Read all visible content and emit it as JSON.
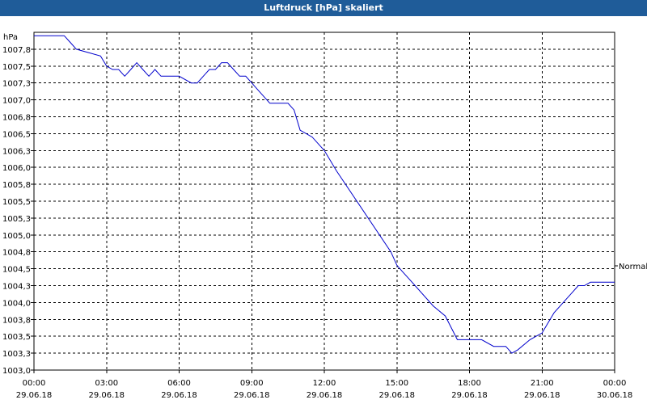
{
  "window": {
    "title": "Luftdruck [hPa] skaliert"
  },
  "chart_data": {
    "type": "line",
    "title": "Luftdruck [hPa] skaliert",
    "ylabel": "hPa",
    "xlabel": "",
    "ylim": [
      1003.0,
      1008.0
    ],
    "grid": true,
    "y_ticks": [
      "1003,0",
      "1003,3",
      "1003,5",
      "1003,8",
      "1004,0",
      "1004,3",
      "1004,5",
      "1004,8",
      "1005,0",
      "1005,3",
      "1005,5",
      "1005,8",
      "1006,0",
      "1006,3",
      "1006,5",
      "1006,8",
      "1007,0",
      "1007,3",
      "1007,5",
      "1007,8"
    ],
    "x_ticks": [
      {
        "time": "00:00",
        "date": "29.06.18"
      },
      {
        "time": "03:00",
        "date": "29.06.18"
      },
      {
        "time": "06:00",
        "date": "29.06.18"
      },
      {
        "time": "09:00",
        "date": "29.06.18"
      },
      {
        "time": "12:00",
        "date": "29.06.18"
      },
      {
        "time": "15:00",
        "date": "29.06.18"
      },
      {
        "time": "18:00",
        "date": "29.06.18"
      },
      {
        "time": "21:00",
        "date": "29.06.18"
      },
      {
        "time": "00:00",
        "date": "30.06.18"
      }
    ],
    "annotation": "Normal",
    "series": [
      {
        "color": "#0000cc",
        "x": [
          "00:00",
          "01:15",
          "01:30",
          "01:45",
          "02:45",
          "03:00",
          "03:15",
          "03:30",
          "03:45",
          "04:00",
          "04:15",
          "04:30",
          "04:45",
          "05:00",
          "05:15",
          "05:45",
          "06:00",
          "06:30",
          "06:45",
          "07:00",
          "07:15",
          "07:30",
          "07:45",
          "08:00",
          "08:15",
          "08:30",
          "08:45",
          "09:00",
          "09:15",
          "09:30",
          "09:45",
          "10:30",
          "10:45",
          "11:00",
          "11:30",
          "11:45",
          "12:00",
          "12:15",
          "12:30",
          "14:45",
          "15:00",
          "15:15",
          "15:30",
          "16:30",
          "17:00",
          "17:30",
          "18:00",
          "18:30",
          "19:00",
          "19:30",
          "19:45",
          "20:00",
          "20:30",
          "21:00",
          "21:15",
          "21:30",
          "21:45",
          "22:00",
          "22:15",
          "22:30",
          "22:45",
          "23:00",
          "23:30",
          "23:45"
        ],
        "y": [
          1007.95,
          1007.95,
          1007.85,
          1007.75,
          1007.65,
          1007.5,
          1007.45,
          1007.45,
          1007.35,
          1007.45,
          1007.55,
          1007.45,
          1007.35,
          1007.45,
          1007.35,
          1007.35,
          1007.35,
          1007.25,
          1007.25,
          1007.35,
          1007.45,
          1007.45,
          1007.55,
          1007.55,
          1007.45,
          1007.35,
          1007.35,
          1007.25,
          1007.15,
          1007.05,
          1006.95,
          1006.95,
          1006.85,
          1006.55,
          1006.45,
          1006.35,
          1006.25,
          1006.1,
          1005.95,
          1004.75,
          1004.55,
          1004.45,
          1004.35,
          1003.95,
          1003.8,
          1003.45,
          1003.45,
          1003.45,
          1003.35,
          1003.35,
          1003.25,
          1003.3,
          1003.45,
          1003.55,
          1003.7,
          1003.85,
          1003.95,
          1004.05,
          1004.15,
          1004.25,
          1004.25,
          1004.3,
          1004.3,
          1004.3
        ]
      }
    ]
  }
}
